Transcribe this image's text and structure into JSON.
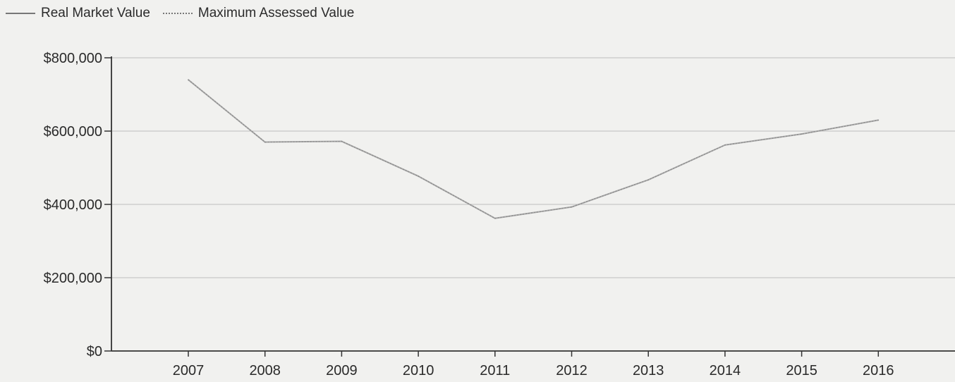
{
  "legend": {
    "items": [
      {
        "label": "Real Market Value",
        "style": "solid"
      },
      {
        "label": "Maximum Assessed Value",
        "style": "dotted"
      }
    ]
  },
  "chart_data": {
    "type": "line",
    "title": "",
    "xlabel": "",
    "ylabel": "",
    "x": [
      "2007",
      "2008",
      "2009",
      "2010",
      "2011",
      "2012",
      "2013",
      "2014",
      "2015",
      "2016"
    ],
    "series": [
      {
        "name": "Real Market Value",
        "values": [
          740000,
          570000,
          572000,
          477000,
          362000,
          393000,
          467000,
          562000,
          592000,
          630000
        ],
        "color": "#a8a8a8"
      },
      {
        "name": "Maximum Assessed Value",
        "values": [
          740000,
          570000,
          572000,
          477000,
          362000,
          393000,
          467000,
          562000,
          592000,
          630000
        ],
        "color": "#8a8a8a",
        "style": "dotted"
      }
    ],
    "yticks": [
      0,
      200000,
      400000,
      600000,
      800000
    ],
    "ytick_labels": [
      "$0",
      "$200,000",
      "$400,000",
      "$600,000",
      "$800,000"
    ],
    "ylim": [
      0,
      800000
    ],
    "grid": true,
    "legend_position": "top-left",
    "colors": {
      "axis": "#333333",
      "grid": "#c8c8c8",
      "background": "#f1f1ef"
    }
  }
}
